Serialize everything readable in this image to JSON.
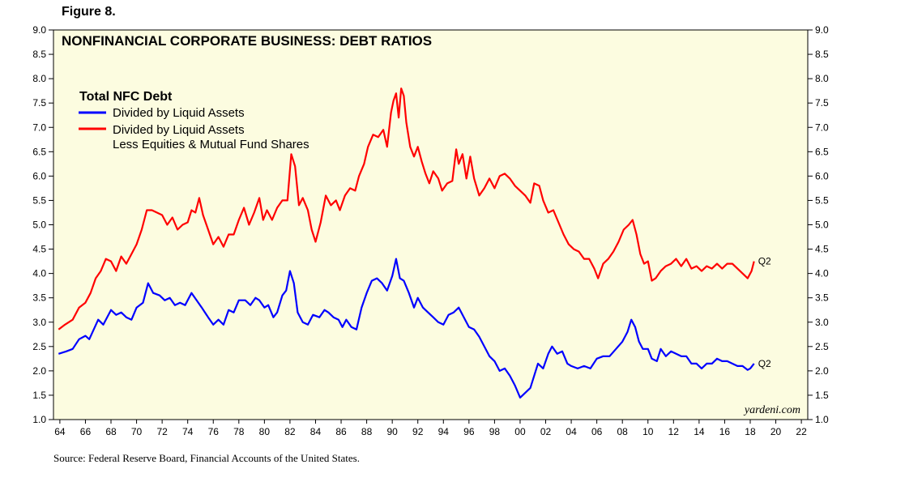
{
  "figure_label": "Figure 8.",
  "source": "Source: Federal Reserve Board, Financial Accounts of the United States.",
  "colors": {
    "plot_background": "#fcfce0",
    "series_liquid": "#0000ff",
    "series_less_equities": "#ff0000"
  },
  "chart_data": {
    "type": "line",
    "title": "NONFINANCIAL CORPORATE BUSINESS: DEBT RATIOS",
    "credit": "yardeni.com",
    "legend_title": "Total NFC Debt",
    "legend_placement": "top-left",
    "xlabel": "",
    "ylabel": "",
    "xlim": [
      1963.5,
      2022.5
    ],
    "ylim": [
      1.0,
      9.0
    ],
    "x_tick_values": [
      1964,
      1966,
      1968,
      1970,
      1972,
      1974,
      1976,
      1978,
      1980,
      1982,
      1984,
      1986,
      1988,
      1990,
      1992,
      1994,
      1996,
      1998,
      2000,
      2002,
      2004,
      2006,
      2008,
      2010,
      2012,
      2014,
      2016,
      2018,
      2020,
      2022
    ],
    "x_tick_labels": [
      "64",
      "66",
      "68",
      "70",
      "72",
      "74",
      "76",
      "78",
      "80",
      "82",
      "84",
      "86",
      "88",
      "90",
      "92",
      "94",
      "96",
      "98",
      "00",
      "02",
      "04",
      "06",
      "08",
      "10",
      "12",
      "14",
      "16",
      "18",
      "20",
      "22"
    ],
    "y_ticks": [
      "1.0",
      "1.5",
      "2.0",
      "2.5",
      "3.0",
      "3.5",
      "4.0",
      "4.5",
      "5.0",
      "5.5",
      "6.0",
      "6.5",
      "7.0",
      "7.5",
      "8.0",
      "8.5",
      "9.0"
    ],
    "series": [
      {
        "name": "Divided by Liquid Assets",
        "end_label": "Q2",
        "color": "#0000ff",
        "points": [
          [
            1963.9,
            2.35
          ],
          [
            1964.5,
            2.4
          ],
          [
            1965.0,
            2.45
          ],
          [
            1965.5,
            2.65
          ],
          [
            1966.0,
            2.72
          ],
          [
            1966.3,
            2.65
          ],
          [
            1967.0,
            3.05
          ],
          [
            1967.4,
            2.95
          ],
          [
            1968.0,
            3.25
          ],
          [
            1968.4,
            3.15
          ],
          [
            1968.8,
            3.2
          ],
          [
            1969.2,
            3.1
          ],
          [
            1969.6,
            3.05
          ],
          [
            1970.0,
            3.3
          ],
          [
            1970.5,
            3.4
          ],
          [
            1970.9,
            3.8
          ],
          [
            1971.3,
            3.6
          ],
          [
            1971.8,
            3.55
          ],
          [
            1972.2,
            3.45
          ],
          [
            1972.6,
            3.5
          ],
          [
            1973.0,
            3.35
          ],
          [
            1973.4,
            3.4
          ],
          [
            1973.8,
            3.35
          ],
          [
            1974.3,
            3.6
          ],
          [
            1974.7,
            3.45
          ],
          [
            1975.1,
            3.3
          ],
          [
            1975.6,
            3.1
          ],
          [
            1976.0,
            2.95
          ],
          [
            1976.4,
            3.05
          ],
          [
            1976.8,
            2.95
          ],
          [
            1977.2,
            3.25
          ],
          [
            1977.6,
            3.2
          ],
          [
            1978.0,
            3.45
          ],
          [
            1978.5,
            3.45
          ],
          [
            1978.9,
            3.35
          ],
          [
            1979.3,
            3.5
          ],
          [
            1979.6,
            3.45
          ],
          [
            1980.0,
            3.3
          ],
          [
            1980.3,
            3.35
          ],
          [
            1980.7,
            3.1
          ],
          [
            1981.0,
            3.2
          ],
          [
            1981.4,
            3.55
          ],
          [
            1981.7,
            3.65
          ],
          [
            1982.0,
            4.05
          ],
          [
            1982.3,
            3.8
          ],
          [
            1982.6,
            3.2
          ],
          [
            1983.0,
            3.0
          ],
          [
            1983.4,
            2.95
          ],
          [
            1983.8,
            3.15
          ],
          [
            1984.3,
            3.1
          ],
          [
            1984.7,
            3.25
          ],
          [
            1985.0,
            3.2
          ],
          [
            1985.4,
            3.1
          ],
          [
            1985.8,
            3.05
          ],
          [
            1986.1,
            2.9
          ],
          [
            1986.4,
            3.05
          ],
          [
            1986.8,
            2.9
          ],
          [
            1987.2,
            2.85
          ],
          [
            1987.6,
            3.3
          ],
          [
            1988.0,
            3.6
          ],
          [
            1988.4,
            3.85
          ],
          [
            1988.8,
            3.9
          ],
          [
            1989.2,
            3.8
          ],
          [
            1989.6,
            3.65
          ],
          [
            1990.0,
            3.95
          ],
          [
            1990.3,
            4.3
          ],
          [
            1990.6,
            3.9
          ],
          [
            1990.9,
            3.85
          ],
          [
            1991.3,
            3.6
          ],
          [
            1991.7,
            3.3
          ],
          [
            1992.0,
            3.5
          ],
          [
            1992.4,
            3.3
          ],
          [
            1992.8,
            3.2
          ],
          [
            1993.2,
            3.1
          ],
          [
            1993.6,
            3.0
          ],
          [
            1994.0,
            2.95
          ],
          [
            1994.4,
            3.15
          ],
          [
            1994.8,
            3.2
          ],
          [
            1995.2,
            3.3
          ],
          [
            1995.6,
            3.1
          ],
          [
            1996.0,
            2.9
          ],
          [
            1996.4,
            2.85
          ],
          [
            1996.8,
            2.7
          ],
          [
            1997.2,
            2.5
          ],
          [
            1997.6,
            2.3
          ],
          [
            1998.0,
            2.2
          ],
          [
            1998.4,
            2.0
          ],
          [
            1998.8,
            2.05
          ],
          [
            1999.2,
            1.9
          ],
          [
            1999.6,
            1.7
          ],
          [
            2000.0,
            1.45
          ],
          [
            2000.4,
            1.55
          ],
          [
            2000.8,
            1.65
          ],
          [
            2001.1,
            1.9
          ],
          [
            2001.4,
            2.15
          ],
          [
            2001.8,
            2.05
          ],
          [
            2002.2,
            2.35
          ],
          [
            2002.5,
            2.5
          ],
          [
            2002.9,
            2.35
          ],
          [
            2003.3,
            2.4
          ],
          [
            2003.7,
            2.15
          ],
          [
            2004.0,
            2.1
          ],
          [
            2004.5,
            2.05
          ],
          [
            2005.0,
            2.1
          ],
          [
            2005.5,
            2.05
          ],
          [
            2006.0,
            2.25
          ],
          [
            2006.5,
            2.3
          ],
          [
            2007.0,
            2.3
          ],
          [
            2007.5,
            2.45
          ],
          [
            2008.0,
            2.6
          ],
          [
            2008.4,
            2.8
          ],
          [
            2008.7,
            3.05
          ],
          [
            2009.0,
            2.9
          ],
          [
            2009.3,
            2.6
          ],
          [
            2009.6,
            2.45
          ],
          [
            2010.0,
            2.45
          ],
          [
            2010.3,
            2.25
          ],
          [
            2010.7,
            2.2
          ],
          [
            2011.0,
            2.45
          ],
          [
            2011.4,
            2.3
          ],
          [
            2011.8,
            2.4
          ],
          [
            2012.2,
            2.35
          ],
          [
            2012.6,
            2.3
          ],
          [
            2013.0,
            2.3
          ],
          [
            2013.4,
            2.15
          ],
          [
            2013.8,
            2.15
          ],
          [
            2014.2,
            2.05
          ],
          [
            2014.6,
            2.15
          ],
          [
            2015.0,
            2.15
          ],
          [
            2015.4,
            2.25
          ],
          [
            2015.8,
            2.2
          ],
          [
            2016.2,
            2.2
          ],
          [
            2016.6,
            2.15
          ],
          [
            2017.0,
            2.1
          ],
          [
            2017.4,
            2.1
          ],
          [
            2017.8,
            2.02
          ],
          [
            2018.0,
            2.05
          ],
          [
            2018.3,
            2.15
          ]
        ]
      },
      {
        "name": "Divided by Liquid Assets",
        "name_line2": "Less Equities & Mutual Fund Shares",
        "end_label": "Q2",
        "color": "#ff0000",
        "points": [
          [
            1963.9,
            2.85
          ],
          [
            1964.4,
            2.95
          ],
          [
            1965.0,
            3.05
          ],
          [
            1965.5,
            3.3
          ],
          [
            1966.0,
            3.4
          ],
          [
            1966.4,
            3.6
          ],
          [
            1966.8,
            3.9
          ],
          [
            1967.2,
            4.05
          ],
          [
            1967.6,
            4.3
          ],
          [
            1968.0,
            4.25
          ],
          [
            1968.4,
            4.05
          ],
          [
            1968.8,
            4.35
          ],
          [
            1969.2,
            4.2
          ],
          [
            1969.6,
            4.4
          ],
          [
            1970.0,
            4.6
          ],
          [
            1970.4,
            4.9
          ],
          [
            1970.8,
            5.3
          ],
          [
            1971.2,
            5.3
          ],
          [
            1971.6,
            5.25
          ],
          [
            1972.0,
            5.2
          ],
          [
            1972.4,
            5.0
          ],
          [
            1972.8,
            5.15
          ],
          [
            1973.2,
            4.9
          ],
          [
            1973.6,
            5.0
          ],
          [
            1974.0,
            5.05
          ],
          [
            1974.3,
            5.3
          ],
          [
            1974.6,
            5.25
          ],
          [
            1974.9,
            5.55
          ],
          [
            1975.2,
            5.2
          ],
          [
            1975.6,
            4.9
          ],
          [
            1976.0,
            4.6
          ],
          [
            1976.4,
            4.75
          ],
          [
            1976.8,
            4.55
          ],
          [
            1977.2,
            4.8
          ],
          [
            1977.6,
            4.8
          ],
          [
            1978.0,
            5.1
          ],
          [
            1978.4,
            5.35
          ],
          [
            1978.8,
            5.0
          ],
          [
            1979.2,
            5.25
          ],
          [
            1979.6,
            5.55
          ],
          [
            1979.9,
            5.1
          ],
          [
            1980.2,
            5.3
          ],
          [
            1980.6,
            5.1
          ],
          [
            1981.0,
            5.35
          ],
          [
            1981.4,
            5.5
          ],
          [
            1981.8,
            5.5
          ],
          [
            1982.1,
            6.45
          ],
          [
            1982.4,
            6.2
          ],
          [
            1982.7,
            5.4
          ],
          [
            1983.0,
            5.55
          ],
          [
            1983.4,
            5.3
          ],
          [
            1983.7,
            4.9
          ],
          [
            1984.0,
            4.65
          ],
          [
            1984.4,
            5.05
          ],
          [
            1984.8,
            5.6
          ],
          [
            1985.2,
            5.4
          ],
          [
            1985.6,
            5.5
          ],
          [
            1985.9,
            5.3
          ],
          [
            1986.3,
            5.6
          ],
          [
            1986.7,
            5.75
          ],
          [
            1987.1,
            5.7
          ],
          [
            1987.4,
            6.0
          ],
          [
            1987.8,
            6.25
          ],
          [
            1988.1,
            6.6
          ],
          [
            1988.5,
            6.85
          ],
          [
            1988.9,
            6.8
          ],
          [
            1989.3,
            6.95
          ],
          [
            1989.6,
            6.6
          ],
          [
            1989.9,
            7.3
          ],
          [
            1990.1,
            7.55
          ],
          [
            1990.3,
            7.7
          ],
          [
            1990.5,
            7.2
          ],
          [
            1990.7,
            7.8
          ],
          [
            1990.9,
            7.65
          ],
          [
            1991.1,
            7.1
          ],
          [
            1991.4,
            6.6
          ],
          [
            1991.7,
            6.4
          ],
          [
            1992.0,
            6.6
          ],
          [
            1992.3,
            6.3
          ],
          [
            1992.6,
            6.05
          ],
          [
            1992.9,
            5.85
          ],
          [
            1993.2,
            6.1
          ],
          [
            1993.6,
            5.95
          ],
          [
            1993.9,
            5.7
          ],
          [
            1994.3,
            5.85
          ],
          [
            1994.7,
            5.9
          ],
          [
            1995.0,
            6.55
          ],
          [
            1995.2,
            6.25
          ],
          [
            1995.5,
            6.45
          ],
          [
            1995.8,
            5.95
          ],
          [
            1996.1,
            6.4
          ],
          [
            1996.4,
            5.95
          ],
          [
            1996.8,
            5.6
          ],
          [
            1997.2,
            5.75
          ],
          [
            1997.6,
            5.95
          ],
          [
            1998.0,
            5.75
          ],
          [
            1998.4,
            6.0
          ],
          [
            1998.8,
            6.05
          ],
          [
            1999.2,
            5.95
          ],
          [
            1999.6,
            5.8
          ],
          [
            2000.0,
            5.7
          ],
          [
            2000.4,
            5.6
          ],
          [
            2000.8,
            5.45
          ],
          [
            2001.1,
            5.85
          ],
          [
            2001.5,
            5.8
          ],
          [
            2001.8,
            5.5
          ],
          [
            2002.2,
            5.25
          ],
          [
            2002.6,
            5.3
          ],
          [
            2003.0,
            5.05
          ],
          [
            2003.4,
            4.8
          ],
          [
            2003.8,
            4.6
          ],
          [
            2004.2,
            4.5
          ],
          [
            2004.6,
            4.45
          ],
          [
            2005.0,
            4.3
          ],
          [
            2005.4,
            4.3
          ],
          [
            2005.8,
            4.1
          ],
          [
            2006.1,
            3.9
          ],
          [
            2006.5,
            4.2
          ],
          [
            2006.9,
            4.3
          ],
          [
            2007.3,
            4.45
          ],
          [
            2007.7,
            4.65
          ],
          [
            2008.1,
            4.9
          ],
          [
            2008.5,
            5.0
          ],
          [
            2008.8,
            5.1
          ],
          [
            2009.1,
            4.8
          ],
          [
            2009.4,
            4.4
          ],
          [
            2009.7,
            4.2
          ],
          [
            2010.0,
            4.25
          ],
          [
            2010.3,
            3.85
          ],
          [
            2010.6,
            3.9
          ],
          [
            2011.0,
            4.05
          ],
          [
            2011.4,
            4.15
          ],
          [
            2011.8,
            4.2
          ],
          [
            2012.2,
            4.3
          ],
          [
            2012.6,
            4.15
          ],
          [
            2013.0,
            4.3
          ],
          [
            2013.4,
            4.1
          ],
          [
            2013.8,
            4.15
          ],
          [
            2014.2,
            4.05
          ],
          [
            2014.6,
            4.15
          ],
          [
            2015.0,
            4.1
          ],
          [
            2015.4,
            4.2
          ],
          [
            2015.8,
            4.1
          ],
          [
            2016.2,
            4.2
          ],
          [
            2016.6,
            4.2
          ],
          [
            2017.0,
            4.1
          ],
          [
            2017.4,
            4.0
          ],
          [
            2017.8,
            3.9
          ],
          [
            2018.1,
            4.05
          ],
          [
            2018.3,
            4.25
          ]
        ]
      }
    ]
  }
}
